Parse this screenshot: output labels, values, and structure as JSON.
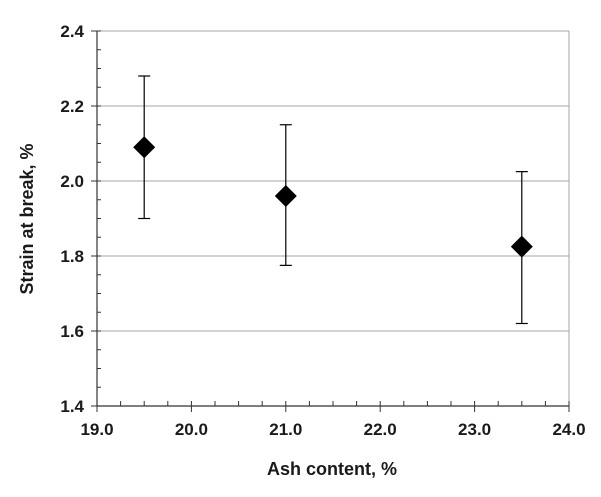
{
  "chart_data": {
    "type": "scatter",
    "xlabel": "Ash content, %",
    "ylabel": "Strain at break, %",
    "xlim": [
      19.0,
      24.0
    ],
    "ylim": [
      1.4,
      2.4
    ],
    "x_ticks": [
      19.0,
      20.0,
      21.0,
      22.0,
      23.0,
      24.0
    ],
    "y_ticks": [
      1.4,
      1.6,
      1.8,
      2.0,
      2.2,
      2.4
    ],
    "x_tick_labels": [
      "19.0",
      "20.0",
      "21.0",
      "22.0",
      "23.0",
      "24.0"
    ],
    "y_tick_labels": [
      "1.4",
      "1.6",
      "1.8",
      "2.0",
      "2.2",
      "2.4"
    ],
    "grid": "horizontal major gridlines",
    "legend": "none",
    "marker": "diamond",
    "marker_color": "#000000",
    "series": [
      {
        "points": [
          {
            "x": 19.5,
            "y": 2.09,
            "error_low": 1.9,
            "error_high": 2.28
          },
          {
            "x": 21.0,
            "y": 1.96,
            "error_low": 1.775,
            "error_high": 2.15
          },
          {
            "x": 23.5,
            "y": 1.825,
            "error_low": 1.62,
            "error_high": 2.025
          }
        ]
      }
    ]
  }
}
